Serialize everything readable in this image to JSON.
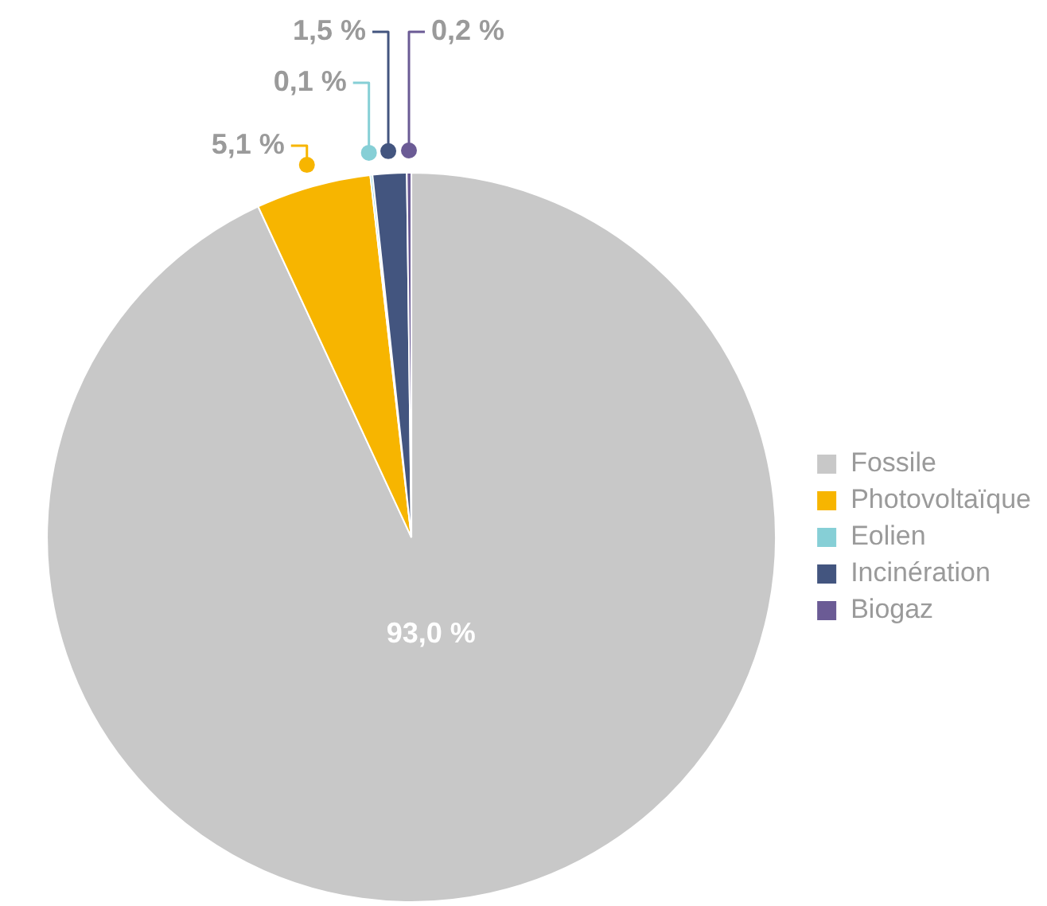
{
  "chart_data": {
    "type": "pie",
    "categories": [
      "Fossile",
      "Photovoltaïque",
      "Eolien",
      "Incinération",
      "Biogaz"
    ],
    "values": [
      93.0,
      5.1,
      0.1,
      1.5,
      0.2
    ],
    "value_labels": [
      "93,0 %",
      "5,1 %",
      "0,1 %",
      "1,5 %",
      "0,2 %"
    ],
    "colors": [
      "#c8c8c8",
      "#f7b500",
      "#86cfd6",
      "#43557f",
      "#6b5b95"
    ],
    "legend": "right"
  }
}
